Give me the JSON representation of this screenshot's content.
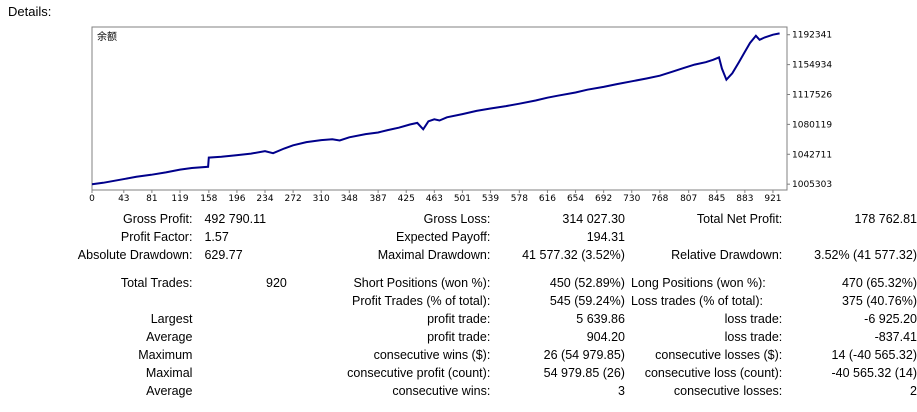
{
  "header": {
    "title": "Details:"
  },
  "chart_data": {
    "type": "line",
    "title": "余额",
    "x_ticks": [
      "0",
      "43",
      "81",
      "119",
      "158",
      "196",
      "234",
      "272",
      "310",
      "348",
      "387",
      "425",
      "463",
      "501",
      "539",
      "578",
      "616",
      "654",
      "692",
      "730",
      "768",
      "807",
      "845",
      "883",
      "921"
    ],
    "y_ticks": [
      "1192341",
      "1154934",
      "1117526",
      "1080119",
      "1042711",
      "1005303"
    ],
    "xlim": [
      0,
      940
    ],
    "ylim": [
      998000,
      1202000
    ],
    "series": [
      {
        "color": "#00008b",
        "points": [
          [
            0,
            1005303
          ],
          [
            15,
            1007000
          ],
          [
            30,
            1009500
          ],
          [
            45,
            1012000
          ],
          [
            60,
            1014500
          ],
          [
            80,
            1017000
          ],
          [
            100,
            1020000
          ],
          [
            119,
            1023500
          ],
          [
            135,
            1025500
          ],
          [
            157,
            1027000
          ],
          [
            158,
            1038500
          ],
          [
            175,
            1039500
          ],
          [
            195,
            1041500
          ],
          [
            215,
            1043500
          ],
          [
            234,
            1046500
          ],
          [
            245,
            1044000
          ],
          [
            260,
            1050000
          ],
          [
            272,
            1054000
          ],
          [
            290,
            1058000
          ],
          [
            310,
            1060500
          ],
          [
            325,
            1061500
          ],
          [
            335,
            1060000
          ],
          [
            348,
            1064000
          ],
          [
            370,
            1068000
          ],
          [
            387,
            1070000
          ],
          [
            400,
            1073000
          ],
          [
            415,
            1076000
          ],
          [
            430,
            1080000
          ],
          [
            440,
            1082000
          ],
          [
            448,
            1074000
          ],
          [
            455,
            1084000
          ],
          [
            463,
            1086500
          ],
          [
            470,
            1085000
          ],
          [
            480,
            1089000
          ],
          [
            501,
            1093000
          ],
          [
            520,
            1097000
          ],
          [
            539,
            1100000
          ],
          [
            560,
            1103000
          ],
          [
            578,
            1106000
          ],
          [
            600,
            1110000
          ],
          [
            616,
            1113500
          ],
          [
            630,
            1116000
          ],
          [
            654,
            1120000
          ],
          [
            670,
            1123500
          ],
          [
            692,
            1127000
          ],
          [
            710,
            1130500
          ],
          [
            730,
            1134000
          ],
          [
            750,
            1137500
          ],
          [
            768,
            1141000
          ],
          [
            785,
            1146000
          ],
          [
            800,
            1150500
          ],
          [
            815,
            1155000
          ],
          [
            830,
            1158000
          ],
          [
            840,
            1161000
          ],
          [
            848,
            1164000
          ],
          [
            852,
            1150000
          ],
          [
            858,
            1136000
          ],
          [
            866,
            1144000
          ],
          [
            875,
            1158000
          ],
          [
            883,
            1171000
          ],
          [
            890,
            1182000
          ],
          [
            898,
            1191000
          ],
          [
            903,
            1186000
          ],
          [
            910,
            1189000
          ],
          [
            921,
            1192341
          ],
          [
            930,
            1194000
          ]
        ]
      }
    ]
  },
  "stats": {
    "row1": {
      "l1": "Gross Profit:",
      "v1": "492 790.11",
      "l2": "Gross Loss:",
      "v2": "314 027.30",
      "l3": "Total Net Profit:",
      "v3": "178 762.81"
    },
    "row2": {
      "l1": "Profit Factor:",
      "v1": "1.57",
      "l2": "Expected Payoff:",
      "v2": "194.31",
      "l3": "",
      "v3": ""
    },
    "row3": {
      "l1": "Absolute Drawdown:",
      "v1": "629.77",
      "l2": "Maximal Drawdown:",
      "v2": "41 577.32 (3.52%)",
      "l3": "Relative Drawdown:",
      "v3": "3.52% (41 577.32)"
    },
    "row4": {
      "l1": "Total Trades:",
      "v1": "920",
      "l2": "Short Positions (won %):",
      "v2": "450 (52.89%)",
      "l3": "Long Positions (won %):",
      "v3": "470 (65.32%)"
    },
    "row5": {
      "l1": "",
      "v1": "",
      "l2": "Profit Trades (% of total):",
      "v2": "545 (59.24%)",
      "l3": "Loss trades (% of total):",
      "v3": "375 (40.76%)"
    },
    "row6": {
      "l1": "Largest",
      "v1": "",
      "l2": "profit trade:",
      "v2": "5 639.86",
      "l3": "loss trade:",
      "v3": "-6 925.20"
    },
    "row7": {
      "l1": "Average",
      "v1": "",
      "l2": "profit trade:",
      "v2": "904.20",
      "l3": "loss trade:",
      "v3": "-837.41"
    },
    "row8": {
      "l1": "Maximum",
      "v1": "",
      "l2": "consecutive wins ($):",
      "v2": "26 (54 979.85)",
      "l3": "consecutive losses ($):",
      "v3": "14 (-40 565.32)"
    },
    "row9": {
      "l1": "Maximal",
      "v1": "",
      "l2": "consecutive profit (count):",
      "v2": "54 979.85 (26)",
      "l3": "consecutive loss (count):",
      "v3": "-40 565.32 (14)"
    },
    "row10": {
      "l1": "Average",
      "v1": "",
      "l2": "consecutive wins:",
      "v2": "3",
      "l3": "consecutive losses:",
      "v3": "2"
    }
  }
}
